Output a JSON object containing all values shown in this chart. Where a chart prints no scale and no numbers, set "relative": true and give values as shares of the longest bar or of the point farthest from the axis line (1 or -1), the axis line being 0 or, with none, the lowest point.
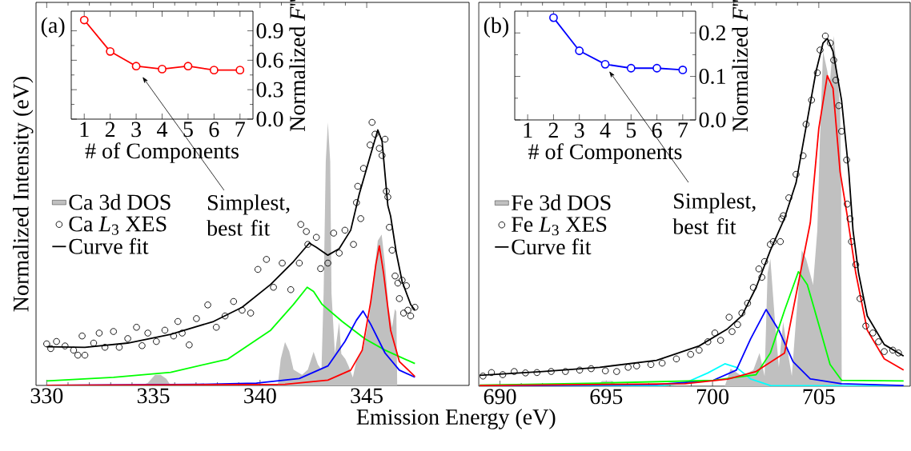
{
  "chart_data": [
    {
      "type": "line",
      "relative": true,
      "xlabel": "Emission Energy (eV)",
      "ylabel": "Normalized Intensity (eV)",
      "xlim": [
        329.5,
        349.8
      ],
      "xticks": [
        330,
        335,
        340,
        345
      ],
      "tick_labels": "x",
      "legend": "left",
      "annotations": [
        "(a)"
      ],
      "series": [
        {
          "name": "Ca 3d DOS",
          "type": "area",
          "color": "#c0c0c0",
          "x": [
            334.47,
            334.74,
            335.08,
            335.34,
            335.61,
            335.81,
            340.83,
            340.97,
            341.17,
            341.37,
            341.57,
            341.97,
            342.24,
            342.51,
            342.71,
            342.88,
            342.98,
            343.08,
            343.18,
            343.29,
            343.35,
            343.51,
            343.64,
            343.71,
            343.81,
            344.0,
            344.17,
            344.35,
            344.53,
            344.84,
            345.12,
            345.35,
            345.52,
            345.7,
            345.86,
            346.02,
            346.19,
            346.32,
            346.39,
            346.43
          ],
          "values": [
            0,
            0.01,
            0.04,
            0.04,
            0.025,
            0,
            0,
            0.1,
            0.165,
            0.13,
            0.06,
            0.04,
            0.06,
            0.128,
            0.08,
            0.06,
            0.35,
            0.85,
            1.0,
            0.85,
            0.35,
            0.12,
            0.2,
            0.24,
            0.12,
            0.1,
            0.07,
            0.03,
            0.1,
            0.14,
            0.26,
            0.43,
            0.55,
            0.574,
            0.46,
            0.3,
            0.22,
            0.29,
            0.28,
            0
          ]
        },
        {
          "name": "Ca *L*$_{3}$ XES",
          "type": "scatter",
          "marker": "circle",
          "color": "#000000",
          "x": [
            330.0,
            330.19,
            330.46,
            330.86,
            331.26,
            331.46,
            331.66,
            331.79,
            332.2,
            332.46,
            332.73,
            333.13,
            333.4,
            333.8,
            334.21,
            334.47,
            334.74,
            335.14,
            335.54,
            335.95,
            336.15,
            336.35,
            336.68,
            337.02,
            337.55,
            337.95,
            338.36,
            338.76,
            339.16,
            339.56,
            339.9,
            340.3,
            340.63,
            341.04,
            341.44,
            341.84,
            341.91,
            342.17,
            342.24,
            342.64,
            342.84,
            343.18,
            343.45,
            343.71,
            343.98,
            344.38,
            344.72,
            344.52,
            344.58,
            344.85,
            345.16,
            345.25,
            345.39,
            345.59,
            345.72,
            345.86,
            345.92,
            345.99,
            346.06,
            346.19,
            346.33,
            346.46,
            346.66,
            346.86,
            346.53,
            346.73,
            346.93,
            347.26,
            347.06
          ],
          "values": [
            0.158,
            0.14,
            0.167,
            0.15,
            0.134,
            0.115,
            0.188,
            0.115,
            0.161,
            0.199,
            0.145,
            0.205,
            0.145,
            0.178,
            0.221,
            0.151,
            0.199,
            0.167,
            0.21,
            0.188,
            0.243,
            0.199,
            0.154,
            0.254,
            0.306,
            0.221,
            0.264,
            0.319,
            0.286,
            0.275,
            0.441,
            0.479,
            0.373,
            0.465,
            0.364,
            0.465,
            0.612,
            0.585,
            0.536,
            0.563,
            0.444,
            0.465,
            0.579,
            0.503,
            0.59,
            0.536,
            0.634,
            0.695,
            0.757,
            0.825,
            0.914,
            1.0,
            0.955,
            0.901,
            0.874,
            0.936,
            0.738,
            0.716,
            0.601,
            0.514,
            0.416,
            0.389,
            0.4,
            0.379,
            0.33,
            0.275,
            0.286,
            0.297,
            0.264
          ]
        },
        {
          "name": "Curve fit",
          "type": "line",
          "color": "#000000",
          "x": [
            330,
            331.79,
            333.8,
            335.81,
            337.82,
            339.16,
            340.5,
            341.57,
            342.31,
            342.64,
            343.18,
            343.71,
            344.25,
            344.65,
            345.19,
            345.52,
            345.72,
            345.99,
            346.12,
            346.39,
            346.66,
            347.06,
            347.26
          ],
          "values": [
            0.147,
            0.145,
            0.161,
            0.194,
            0.243,
            0.297,
            0.384,
            0.471,
            0.541,
            0.525,
            0.495,
            0.52,
            0.59,
            0.727,
            0.879,
            0.971,
            0.928,
            0.684,
            0.644,
            0.503,
            0.395,
            0.308,
            0.286
          ]
        },
        {
          "type": "line",
          "color": "#00ff00",
          "x": [
            330,
            333.13,
            335.81,
            338.49,
            340.5,
            341.57,
            342.21,
            342.51,
            342.91,
            343.85,
            344.92,
            345.86,
            347.26
          ],
          "values": [
            0.017,
            0.031,
            0.05,
            0.1,
            0.21,
            0.308,
            0.373,
            0.357,
            0.308,
            0.243,
            0.177,
            0.134,
            0.083
          ]
        },
        {
          "type": "line",
          "color": "#0000ff",
          "x": [
            330,
            337.15,
            339.83,
            341.84,
            343.18,
            343.98,
            344.52,
            344.83,
            345.19,
            345.86,
            346.53,
            347.26
          ],
          "values": [
            0,
            0.004,
            0.009,
            0.026,
            0.074,
            0.167,
            0.248,
            0.283,
            0.232,
            0.123,
            0.058,
            0.031
          ]
        },
        {
          "type": "line",
          "color": "#ff0000",
          "x": [
            330,
            341.17,
            343.18,
            344.25,
            344.79,
            345.19,
            345.43,
            345.59,
            345.79,
            346.12,
            346.53,
            347.26
          ],
          "values": [
            0,
            0.004,
            0.02,
            0.058,
            0.134,
            0.319,
            0.46,
            0.531,
            0.427,
            0.21,
            0.091,
            0.034
          ]
        }
      ]
    },
    {
      "type": "line",
      "xlabel": "# of Components",
      "ylabel": "Normalized *F*''",
      "x": [
        1,
        2,
        3,
        4,
        5,
        6,
        7
      ],
      "values": [
        1.01,
        0.69,
        0.54,
        0.51,
        0.54,
        0.5,
        0.5
      ],
      "color": "#ff0000",
      "marker": "circle",
      "xlim": [
        0.5,
        7.5
      ],
      "xticks": [
        1,
        2,
        3,
        4,
        5,
        6,
        7
      ],
      "ylim": [
        0,
        1.1
      ],
      "yticks": [
        {
          "value": 0,
          "label": "0.0"
        },
        0.3,
        0.6,
        0.9
      ],
      "annotations": [
        "Simplest, best fit"
      ]
    },
    {
      "type": "line",
      "relative": true,
      "xlim": [
        689,
        709.3
      ],
      "xticks": [
        690,
        695,
        700,
        705
      ],
      "tick_labels": "x",
      "legend": "left",
      "annotations": [
        "(b)"
      ],
      "series": [
        {
          "name": "Fe 3d DOS",
          "type": "area",
          "color": "#c0c0c0",
          "x": [
            694.5,
            694.8,
            695.3,
            695.5,
            700.58,
            700.85,
            701.38,
            701.92,
            702.21,
            702.45,
            702.59,
            702.72,
            702.92,
            703.12,
            703.32,
            703.53,
            703.73,
            703.93,
            704.2,
            704.4,
            704.73,
            704.93,
            705.05,
            705.2,
            705.4,
            705.51,
            705.7,
            705.85,
            706.0,
            706.05,
            706.08
          ],
          "values": [
            0,
            0.015,
            0.015,
            0,
            0,
            0.05,
            0.029,
            0.046,
            0.095,
            0.029,
            0.323,
            0.364,
            0.2,
            0.054,
            0.184,
            0.103,
            0.029,
            0.192,
            0.388,
            0.364,
            0.29,
            0.445,
            0.7,
            0.956,
            0.9,
            0.858,
            1.0,
            0.9,
            0.8,
            0.6,
            0
          ]
        },
        {
          "name": "Fe *L*$_{3}$ XES",
          "type": "scatter",
          "marker": "circle",
          "color": "#000000",
          "x": [
            689.2,
            689.6,
            690.13,
            690.67,
            691.2,
            691.74,
            692.41,
            693.08,
            693.75,
            694.29,
            694.96,
            695.49,
            696.03,
            696.43,
            697.1,
            697.63,
            698.3,
            698.97,
            699.37,
            699.78,
            700.11,
            700.38,
            700.78,
            700.92,
            701.18,
            701.38,
            701.65,
            701.92,
            702.18,
            702.32,
            702.45,
            702.72,
            702.86,
            703.19,
            703.26,
            703.33,
            703.59,
            703.93,
            704.26,
            704.4,
            704.66,
            704.93,
            705.06,
            705.31,
            705.54,
            705.7,
            705.8,
            705.94,
            706.07,
            706.31,
            706.34,
            706.47,
            706.54,
            706.74,
            706.94,
            707.21,
            707.54,
            707.81,
            708.08,
            708.48,
            708.75
          ],
          "values": [
            0.029,
            0.039,
            0.033,
            0.042,
            0.038,
            0.039,
            0.042,
            0.042,
            0.046,
            0.05,
            0.044,
            0.042,
            0.054,
            0.058,
            0.062,
            0.066,
            0.078,
            0.091,
            0.103,
            0.127,
            0.152,
            0.131,
            0.197,
            0.156,
            0.176,
            0.209,
            0.237,
            0.282,
            0.335,
            0.311,
            0.356,
            0.405,
            0.413,
            0.413,
            0.478,
            0.487,
            0.538,
            0.605,
            0.658,
            0.748,
            0.817,
            0.895,
            0.96,
            1.0,
            0.98,
            0.931,
            0.874,
            0.801,
            0.728,
            0.646,
            0.52,
            0.478,
            0.413,
            0.347,
            0.25,
            0.172,
            0.152,
            0.127,
            0.099,
            0.103,
            0.095
          ]
        },
        {
          "name": "Curve fit",
          "type": "line",
          "color": "#000000",
          "x": [
            689.04,
            692.01,
            694.69,
            697.37,
            699.37,
            700.71,
            701.38,
            702.05,
            702.72,
            703.39,
            703.93,
            704.46,
            704.87,
            705.2,
            705.4,
            705.67,
            706.07,
            706.41,
            706.61,
            706.87,
            707.28,
            708.08,
            708.99
          ],
          "values": [
            0.031,
            0.042,
            0.054,
            0.074,
            0.115,
            0.164,
            0.201,
            0.282,
            0.388,
            0.48,
            0.581,
            0.76,
            0.899,
            0.98,
            0.993,
            0.956,
            0.817,
            0.613,
            0.445,
            0.323,
            0.201,
            0.119,
            0.086
          ]
        },
        {
          "type": "line",
          "color": "#00ffff",
          "x": [
            689.04,
            697.37,
            698.7,
            699.78,
            700.58,
            701.12,
            701.79,
            702.72,
            708.99
          ],
          "values": [
            0,
            0.001,
            0.009,
            0.038,
            0.064,
            0.054,
            0.021,
            0.002,
            0
          ]
        },
        {
          "type": "line",
          "color": "#0000ff",
          "x": [
            689.04,
            697.37,
            700.04,
            701.12,
            701.79,
            702.52,
            703.12,
            703.79,
            704.6,
            706.07,
            708.99
          ],
          "values": [
            0.001,
            0.005,
            0.017,
            0.046,
            0.135,
            0.219,
            0.16,
            0.07,
            0.021,
            0.007,
            0.002
          ]
        },
        {
          "type": "line",
          "color": "#00ff00",
          "x": [
            689.04,
            694.69,
            700.04,
            702.05,
            702.72,
            703.39,
            704.04,
            704.46,
            705.0,
            705.53,
            706.07,
            708.99
          ],
          "values": [
            0.003,
            0.009,
            0.017,
            0.033,
            0.095,
            0.217,
            0.327,
            0.29,
            0.176,
            0.062,
            0.017,
            0.015
          ]
        },
        {
          "type": "line",
          "color": "#ff0000",
          "x": [
            689.04,
            698.7,
            700.71,
            702.05,
            703.39,
            704.6,
            705.0,
            705.4,
            705.67,
            706.0,
            706.34,
            706.74,
            707.28,
            708.08,
            708.99
          ],
          "values": [
            0.002,
            0.007,
            0.02,
            0.042,
            0.095,
            0.467,
            0.736,
            0.887,
            0.85,
            0.613,
            0.486,
            0.323,
            0.16,
            0.078,
            0.046
          ]
        }
      ]
    },
    {
      "type": "line",
      "xlabel": "# of Components",
      "ylabel": "Normalized *F*''",
      "x": [
        2,
        3,
        4,
        5,
        6,
        7
      ],
      "values": [
        0.235,
        0.159,
        0.128,
        0.119,
        0.119,
        0.115
      ],
      "color": "#0000ff",
      "marker": "circle",
      "xlim": [
        0.5,
        7.5
      ],
      "xticks": [
        1,
        2,
        3,
        4,
        5,
        6,
        7
      ],
      "ylim": [
        0,
        0.25
      ],
      "yticks": [
        {
          "value": 0,
          "label": "0.0"
        },
        0.1,
        0.2
      ],
      "annotations": [
        "Simplest, best fit"
      ]
    }
  ]
}
